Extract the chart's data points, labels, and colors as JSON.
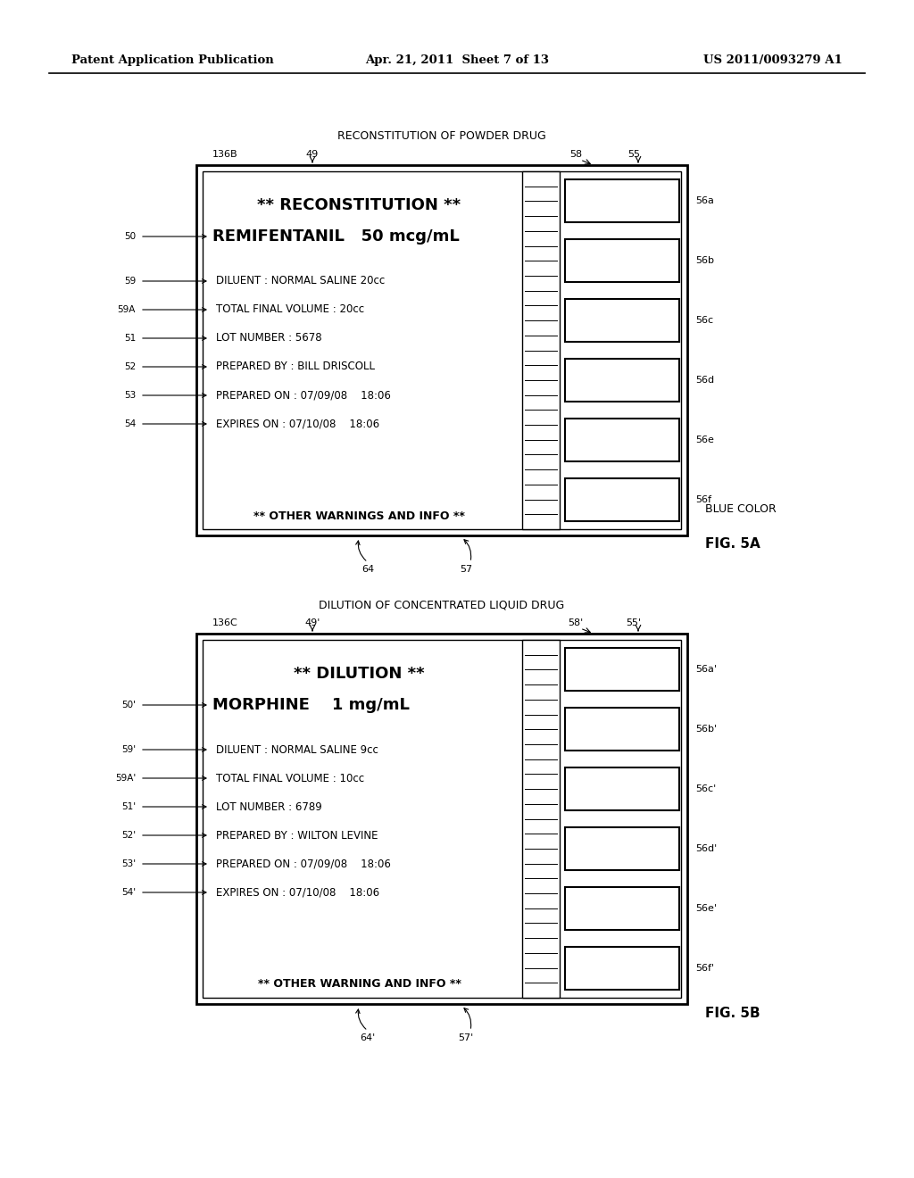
{
  "bg_color": "#ffffff",
  "header_left": "Patent Application Publication",
  "header_mid": "Apr. 21, 2011  Sheet 7 of 13",
  "header_right": "US 2011/0093279 A1",
  "fig_a": {
    "title_above": "RECONSTITUTION OF POWDER DRUG",
    "label_136": "136B",
    "label_49": "49",
    "label_58": "58",
    "label_55": "55",
    "line1_bold": "** RECONSTITUTION **",
    "line2_bold": "REMIFENTANIL   50 mcg/mL",
    "info_lines": [
      "DILUENT : NORMAL SALINE 20cc",
      "TOTAL FINAL VOLUME : 20cc",
      "LOT NUMBER : 5678",
      "PREPARED BY : BILL DRISCOLL",
      "PREPARED ON : 07/09/08    18:06",
      "EXPIRES ON : 07/10/08    18:06"
    ],
    "bottom_text": "** OTHER WARNINGS AND INFO **",
    "left_labels": [
      "50",
      "59",
      "59A",
      "51",
      "52",
      "53",
      "54"
    ],
    "right_labels": [
      "56a",
      "56b",
      "56c",
      "56d",
      "56e",
      "56f"
    ],
    "label_64": "64",
    "label_57": "57",
    "label_blue": "BLUE COLOR",
    "fig_label": "FIG. 5A"
  },
  "fig_b": {
    "title_above": "DILUTION OF CONCENTRATED LIQUID DRUG",
    "label_136": "136C",
    "label_49": "49'",
    "label_58": "58'",
    "label_55": "55'",
    "line1_bold": "** DILUTION **",
    "line2_bold": "MORPHINE    1 mg/mL",
    "info_lines": [
      "DILUENT : NORMAL SALINE 9cc",
      "TOTAL FINAL VOLUME : 10cc",
      "LOT NUMBER : 6789",
      "PREPARED BY : WILTON LEVINE",
      "PREPARED ON : 07/09/08    18:06",
      "EXPIRES ON : 07/10/08    18:06"
    ],
    "bottom_text": "** OTHER WARNING AND INFO **",
    "left_labels": [
      "50'",
      "59'",
      "59A'",
      "51'",
      "52'",
      "53'",
      "54'"
    ],
    "right_labels": [
      "56a'",
      "56b'",
      "56c'",
      "56d'",
      "56e'",
      "56f'"
    ],
    "label_64": "64'",
    "label_57": "57'",
    "fig_label": "FIG. 5B"
  }
}
